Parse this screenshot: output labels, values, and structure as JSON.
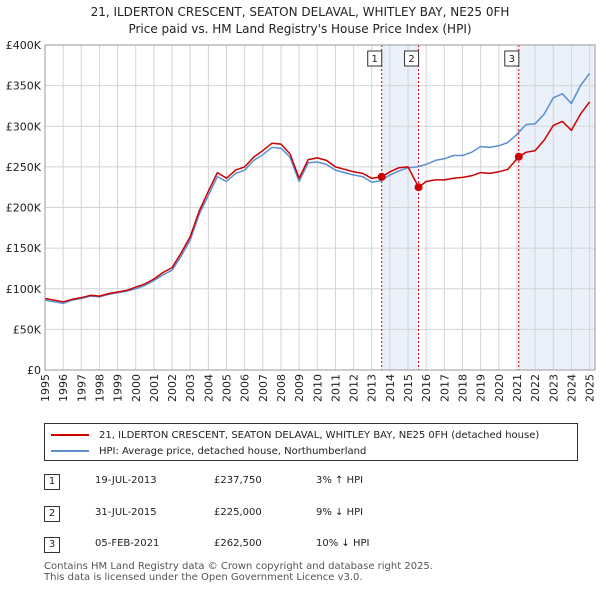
{
  "title_line1": "21, ILDERTON CRESCENT, SEATON DELAVAL, WHITLEY BAY, NE25 0FH",
  "title_line2": "Price paid vs. HM Land Registry's House Price Index (HPI)",
  "legend": {
    "property_label": "21, ILDERTON CRESCENT, SEATON DELAVAL, WHITLEY BAY, NE25 0FH (detached house)",
    "hpi_label": "HPI: Average price, detached house, Northumberland"
  },
  "colors": {
    "property_line": "#cc0000",
    "hpi_line": "#5b8fd1",
    "shade": "#dde7f7",
    "marker_line": "#cc0000"
  },
  "transactions": [
    {
      "num": "1",
      "date": "19-JUL-2013",
      "price": "£237,750",
      "hpi_diff": "3% ↑ HPI",
      "x": 2013.55,
      "y": 237750
    },
    {
      "num": "2",
      "date": "31-JUL-2015",
      "price": "£225,000",
      "hpi_diff": "9% ↓ HPI",
      "x": 2015.58,
      "y": 225000
    },
    {
      "num": "3",
      "date": "05-FEB-2021",
      "price": "£262,500",
      "hpi_diff": "10% ↓ HPI",
      "x": 2021.1,
      "y": 262500
    }
  ],
  "footer_line1": "Contains HM Land Registry data © Crown copyright and database right 2025.",
  "footer_line2": "This data is licensed under the Open Government Licence v3.0.",
  "chart_data": {
    "type": "line",
    "title": "21, ILDERTON CRESCENT, SEATON DELAVAL, WHITLEY BAY, NE25 0FH — Price paid vs. HM Land Registry's House Price Index (HPI)",
    "xlabel": "",
    "ylabel": "",
    "xlim": [
      1995,
      2025.3
    ],
    "ylim": [
      0,
      400000
    ],
    "grid": true,
    "x_ticks": [
      1995,
      1996,
      1997,
      1998,
      1999,
      2000,
      2001,
      2002,
      2003,
      2004,
      2005,
      2006,
      2007,
      2008,
      2009,
      2010,
      2011,
      2012,
      2013,
      2014,
      2015,
      2016,
      2017,
      2018,
      2019,
      2020,
      2021,
      2022,
      2023,
      2024,
      2025
    ],
    "x_tick_labels": [
      "1995",
      "1996",
      "1997",
      "1998",
      "1999",
      "2000",
      "2001",
      "2002",
      "2003",
      "2004",
      "2005",
      "2006",
      "2007",
      "2008",
      "2009",
      "2010",
      "2011",
      "2012",
      "2013",
      "2014",
      "2015",
      "2016",
      "2017",
      "2018",
      "2019",
      "2020",
      "2021",
      "2022",
      "2023",
      "2024",
      "2025"
    ],
    "y_ticks": [
      0,
      50000,
      100000,
      150000,
      200000,
      250000,
      300000,
      350000,
      400000
    ],
    "y_tick_labels": [
      "£0",
      "£50K",
      "£100K",
      "£150K",
      "£200K",
      "£250K",
      "£300K",
      "£350K",
      "£400K"
    ],
    "shaded_ranges": [
      [
        2013.55,
        2015.58
      ],
      [
        2021.1,
        2025.3
      ]
    ],
    "series": [
      {
        "name": "HPI: Average price, detached house, Northumberland",
        "x": [
          1995.0,
          1995.5,
          1996.0,
          1996.5,
          1997.0,
          1997.5,
          1998.0,
          1998.5,
          1999.0,
          1999.5,
          2000.0,
          2000.5,
          2001.0,
          2001.5,
          2002.0,
          2002.5,
          2003.0,
          2003.5,
          2004.0,
          2004.5,
          2005.0,
          2005.5,
          2006.0,
          2006.5,
          2007.0,
          2007.5,
          2008.0,
          2008.5,
          2009.0,
          2009.5,
          2010.0,
          2010.5,
          2011.0,
          2011.5,
          2012.0,
          2012.5,
          2013.0,
          2013.5,
          2014.0,
          2014.5,
          2015.0,
          2015.5,
          2016.0,
          2016.5,
          2017.0,
          2017.5,
          2018.0,
          2018.5,
          2019.0,
          2019.5,
          2020.0,
          2020.5,
          2021.0,
          2021.5,
          2022.0,
          2022.5,
          2023.0,
          2023.5,
          2024.0,
          2024.5,
          2025.0
        ],
        "values": [
          86000,
          84000,
          82000,
          86000,
          88000,
          91000,
          90000,
          93000,
          95000,
          97000,
          100000,
          104000,
          110000,
          117000,
          123000,
          140000,
          160000,
          192000,
          215000,
          238000,
          232000,
          242000,
          246000,
          258000,
          265000,
          274000,
          273000,
          262000,
          232000,
          255000,
          256000,
          253000,
          246000,
          243000,
          240000,
          238000,
          231000,
          233000,
          240000,
          245000,
          249000,
          250000,
          253000,
          258000,
          260000,
          264000,
          264000,
          268000,
          275000,
          274000,
          276000,
          280000,
          290000,
          302000,
          303000,
          315000,
          335000,
          340000,
          328000,
          350000,
          365000
        ]
      },
      {
        "name": "21, ILDERTON CRESCENT, SEATON DELAVAL, WHITLEY BAY, NE25 0FH (detached house)",
        "x": [
          1995.0,
          1995.5,
          1996.0,
          1996.5,
          1997.0,
          1997.5,
          1998.0,
          1998.5,
          1999.0,
          1999.5,
          2000.0,
          2000.5,
          2001.0,
          2001.5,
          2002.0,
          2002.5,
          2003.0,
          2003.5,
          2004.0,
          2004.5,
          2005.0,
          2005.5,
          2006.0,
          2006.5,
          2007.0,
          2007.5,
          2008.0,
          2008.5,
          2009.0,
          2009.5,
          2010.0,
          2010.5,
          2011.0,
          2011.5,
          2012.0,
          2012.5,
          2013.0,
          2013.55,
          2014.0,
          2014.5,
          2015.0,
          2015.58,
          2016.0,
          2016.5,
          2017.0,
          2017.5,
          2018.0,
          2018.5,
          2019.0,
          2019.5,
          2020.0,
          2020.5,
          2021.1,
          2021.5,
          2022.0,
          2022.5,
          2023.0,
          2023.5,
          2024.0,
          2024.5,
          2025.0
        ],
        "values": [
          88000,
          86000,
          84000,
          87000,
          89000,
          92000,
          91000,
          94000,
          96000,
          98000,
          102000,
          106000,
          112000,
          120000,
          126000,
          144000,
          164000,
          196000,
          220000,
          243000,
          236000,
          246000,
          250000,
          262000,
          270000,
          279000,
          278000,
          266000,
          236000,
          259000,
          261000,
          258000,
          250000,
          247000,
          244000,
          242000,
          236000,
          237750,
          244000,
          249000,
          250000,
          225000,
          232000,
          234000,
          234000,
          236000,
          237000,
          239000,
          243000,
          242000,
          244000,
          247000,
          262500,
          268000,
          270000,
          283000,
          301000,
          306000,
          295000,
          315000,
          330000
        ]
      }
    ],
    "markers": [
      {
        "label": "1",
        "x": 2013.55,
        "y": 237750
      },
      {
        "label": "2",
        "x": 2015.58,
        "y": 225000
      },
      {
        "label": "3",
        "x": 2021.1,
        "y": 262500
      }
    ]
  }
}
